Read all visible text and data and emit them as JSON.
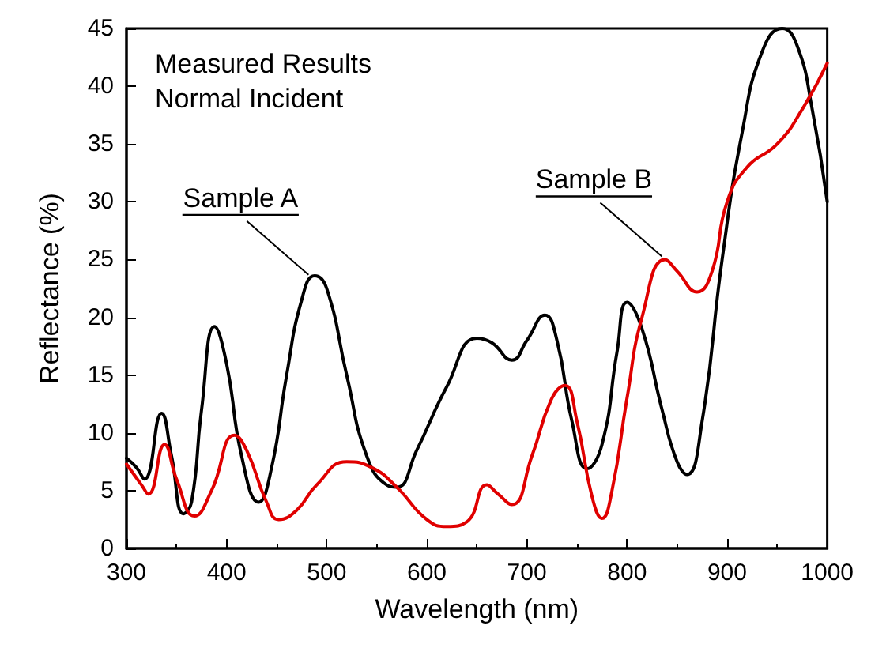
{
  "chart_data": {
    "type": "line",
    "xlabel": "Wavelength (nm)",
    "ylabel": "Reflectance (%)",
    "xlim": [
      300,
      1000
    ],
    "xticks": [
      300,
      400,
      500,
      600,
      700,
      800,
      900,
      1000
    ],
    "ylim": [
      0,
      45
    ],
    "yticks": [
      0,
      5,
      10,
      15,
      20,
      25,
      30,
      35,
      40,
      45
    ],
    "grid": false,
    "marker": "none",
    "line_style": "solid",
    "annotations": [
      "Measured Results",
      "Normal Incident",
      {
        "text": "Sample A",
        "x": 485,
        "y": 23.4
      },
      {
        "text": "Sample B",
        "x": 838,
        "y": 25
      }
    ],
    "series": [
      {
        "color": "#000000",
        "x": [
          300,
          310,
          318,
          335,
          345,
          357,
          365,
          375,
          388,
          400,
          415,
          432,
          445,
          460,
          475,
          488,
          500,
          520,
          540,
          560,
          570,
          590,
          620,
          650,
          665,
          685,
          700,
          718,
          730,
          745,
          760,
          775,
          790,
          800,
          815,
          835,
          850,
          860,
          875,
          895,
          915,
          935,
          955,
          970,
          985,
          1000
        ],
        "values": [
          7.8,
          7,
          6,
          11.7,
          8,
          3,
          4,
          12,
          19.2,
          16,
          8,
          4,
          7,
          15,
          21.5,
          23.6,
          22.5,
          15,
          8,
          5.5,
          5.3,
          8.5,
          14,
          18.2,
          17.8,
          16.3,
          18,
          20.2,
          18,
          11,
          6.9,
          9,
          17,
          21.3,
          19,
          12,
          7.5,
          6.4,
          11,
          25,
          36,
          43,
          45,
          43.5,
          38,
          30
        ]
      },
      {
        "color": "#e00000",
        "x": [
          300,
          315,
          322,
          338,
          350,
          368,
          385,
          408,
          420,
          440,
          452,
          470,
          490,
          520,
          545,
          570,
          600,
          620,
          640,
          660,
          670,
          685,
          705,
          725,
          738,
          750,
          765,
          775,
          785,
          800,
          815,
          838,
          850,
          870,
          885,
          900,
          920,
          950,
          975,
          1000
        ],
        "values": [
          7.3,
          5.5,
          4.7,
          9,
          6,
          2.8,
          5,
          9.8,
          8.5,
          4,
          2.5,
          3.3,
          5.5,
          7.5,
          7,
          5.3,
          2.5,
          1.9,
          2.3,
          5.5,
          4.8,
          3.8,
          8,
          13,
          14.1,
          11,
          4.5,
          2.6,
          5,
          13,
          20,
          25,
          24,
          22.2,
          24,
          30,
          33,
          35,
          38,
          42
        ]
      }
    ]
  }
}
